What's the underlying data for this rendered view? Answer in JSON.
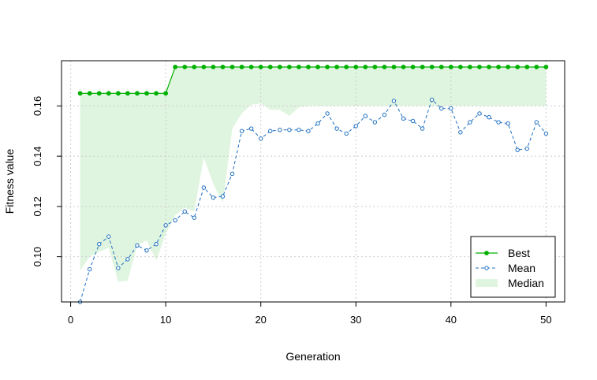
{
  "chart_data": {
    "type": "line",
    "xlabel": "Generation",
    "ylabel": "Fitness value",
    "xlim": [
      1,
      50
    ],
    "ylim": [
      0.082,
      0.178
    ],
    "x_ticks": [
      0,
      10,
      20,
      30,
      40,
      50
    ],
    "x_tick_labels": [
      "0",
      "10",
      "20",
      "30",
      "40",
      "50"
    ],
    "y_ticks": [
      0.1,
      0.12,
      0.14,
      0.16
    ],
    "y_tick_labels": [
      "0.10",
      "0.12",
      "0.14",
      "0.16"
    ],
    "grid": true,
    "legend_position": "bottom-right",
    "x": [
      1,
      2,
      3,
      4,
      5,
      6,
      7,
      8,
      9,
      10,
      11,
      12,
      13,
      14,
      15,
      16,
      17,
      18,
      19,
      20,
      21,
      22,
      23,
      24,
      25,
      26,
      27,
      28,
      29,
      30,
      31,
      32,
      33,
      34,
      35,
      36,
      37,
      38,
      39,
      40,
      41,
      42,
      43,
      44,
      45,
      46,
      47,
      48,
      49,
      50
    ],
    "series": [
      {
        "name": "Best",
        "color": "#00B000",
        "values": [
          0.165,
          0.165,
          0.165,
          0.165,
          0.165,
          0.165,
          0.165,
          0.165,
          0.165,
          0.165,
          0.1755,
          0.1755,
          0.1755,
          0.1755,
          0.1755,
          0.1755,
          0.1755,
          0.1755,
          0.1755,
          0.1755,
          0.1755,
          0.1755,
          0.1755,
          0.1755,
          0.1755,
          0.1755,
          0.1755,
          0.1755,
          0.1755,
          0.1755,
          0.1755,
          0.1755,
          0.1755,
          0.1755,
          0.1755,
          0.1755,
          0.1755,
          0.1755,
          0.1755,
          0.1755,
          0.1755,
          0.1755,
          0.1755,
          0.1755,
          0.1755,
          0.1755,
          0.1755,
          0.1755,
          0.1755,
          0.1755
        ]
      },
      {
        "name": "Mean",
        "color": "#1E6FC0",
        "values": [
          0.082,
          0.095,
          0.105,
          0.108,
          0.0955,
          0.099,
          0.1045,
          0.1025,
          0.105,
          0.1125,
          0.1145,
          0.118,
          0.1155,
          0.1275,
          0.1235,
          0.124,
          0.133,
          0.15,
          0.151,
          0.147,
          0.15,
          0.1505,
          0.1505,
          0.1505,
          0.15,
          0.153,
          0.157,
          0.151,
          0.149,
          0.152,
          0.156,
          0.1535,
          0.1565,
          0.162,
          0.155,
          0.154,
          0.151,
          0.1625,
          0.159,
          0.159,
          0.1495,
          0.1535,
          0.157,
          0.1555,
          0.1535,
          0.153,
          0.1425,
          0.143,
          0.1535,
          0.149
        ]
      },
      {
        "name": "Median",
        "color": "#E0F5E0",
        "values": [
          0.0945,
          0.1,
          0.102,
          0.1035,
          0.09,
          0.0905,
          0.1045,
          0.1065,
          0.0985,
          0.109,
          0.1165,
          0.1195,
          0.118,
          0.1395,
          0.129,
          0.1215,
          0.151,
          0.157,
          0.1605,
          0.161,
          0.1585,
          0.1585,
          0.156,
          0.1595,
          0.16,
          0.16,
          0.16,
          0.16,
          0.16,
          0.16,
          0.16,
          0.16,
          0.16,
          0.16,
          0.16,
          0.16,
          0.16,
          0.16,
          0.16,
          0.16,
          0.16,
          0.16,
          0.16,
          0.16,
          0.16,
          0.16,
          0.16,
          0.16,
          0.16,
          0.16
        ]
      }
    ]
  }
}
